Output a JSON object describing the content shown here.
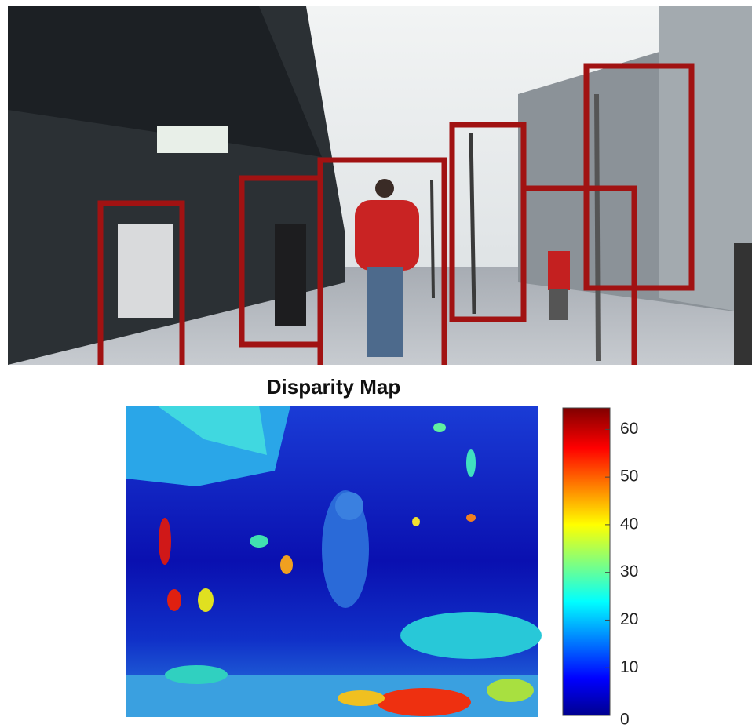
{
  "disparity_map": {
    "title": "Disparity Map",
    "colorbar": {
      "lim": [
        0,
        64.5
      ],
      "ticks": [
        0,
        10,
        20,
        30,
        40,
        50,
        60
      ]
    }
  }
}
